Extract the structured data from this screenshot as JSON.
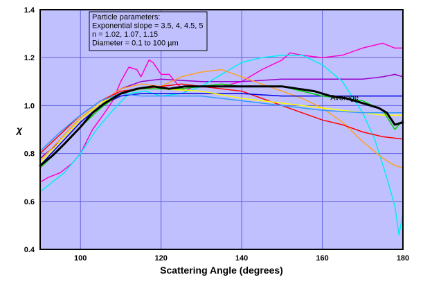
{
  "chart_data": {
    "type": "line",
    "xlabel": "Scattering Angle (degrees)",
    "ylabel": "χ",
    "xlim": [
      90,
      180
    ],
    "ylim": [
      0.4,
      1.4
    ],
    "x_ticks": [
      100,
      120,
      140,
      160,
      180
    ],
    "y_ticks": [
      0.4,
      0.6,
      0.8,
      1.0,
      1.2,
      1.4
    ],
    "grid": true,
    "colors": {
      "plot_background": "#c0c0ff",
      "grid": "#6060e0"
    },
    "annotation": {
      "lines": [
        "Particle parameters:",
        "Exponential slope = 3.5, 4, 4.5, 5",
        "n = 1.02, 1.07, 1.15",
        "Diameter = 0.1 to 100 µm"
      ],
      "placement": "top-left"
    },
    "series": [
      {
        "color": "#ff00cc",
        "x": [
          90,
          92,
          95,
          98,
          100,
          103,
          106,
          108,
          110,
          112,
          114,
          115,
          117,
          118,
          120,
          122,
          124,
          126,
          128,
          130,
          135,
          140,
          145,
          150,
          152,
          155,
          160,
          165,
          170,
          175,
          178,
          180
        ],
        "y": [
          0.68,
          0.7,
          0.72,
          0.76,
          0.8,
          0.9,
          0.97,
          1.02,
          1.1,
          1.16,
          1.15,
          1.12,
          1.19,
          1.18,
          1.13,
          1.13,
          1.09,
          1.06,
          1.08,
          1.08,
          1.08,
          1.1,
          1.15,
          1.19,
          1.22,
          1.21,
          1.2,
          1.21,
          1.24,
          1.26,
          1.24,
          1.24
        ]
      },
      {
        "color": "#9900cc",
        "x": [
          90,
          95,
          100,
          105,
          110,
          115,
          120,
          130,
          140,
          150,
          160,
          170,
          175,
          178,
          180
        ],
        "y": [
          0.78,
          0.85,
          0.94,
          1.01,
          1.07,
          1.1,
          1.11,
          1.1,
          1.1,
          1.11,
          1.11,
          1.11,
          1.12,
          1.13,
          1.12
        ]
      },
      {
        "color": "#00eeee",
        "x": [
          90,
          93,
          96,
          100,
          104,
          108,
          112,
          116,
          120,
          125,
          130,
          135,
          140,
          145,
          150,
          155,
          160,
          165,
          170,
          173,
          176,
          178,
          179,
          180
        ],
        "y": [
          0.64,
          0.68,
          0.72,
          0.8,
          0.9,
          0.98,
          1.05,
          1.06,
          1.04,
          1.05,
          1.08,
          1.13,
          1.18,
          1.2,
          1.21,
          1.21,
          1.17,
          1.1,
          0.97,
          0.86,
          0.7,
          0.58,
          0.46,
          0.55
        ]
      },
      {
        "color": "#ffa020",
        "x": [
          90,
          95,
          100,
          105,
          110,
          115,
          120,
          125,
          130,
          135,
          140,
          145,
          150,
          155,
          160,
          165,
          170,
          175,
          178,
          180
        ],
        "y": [
          0.77,
          0.86,
          0.95,
          1.01,
          1.07,
          1.09,
          1.08,
          1.12,
          1.14,
          1.15,
          1.12,
          1.09,
          1.06,
          1.03,
          0.99,
          0.93,
          0.85,
          0.78,
          0.75,
          0.74
        ]
      },
      {
        "color": "#ff0000",
        "x": [
          90,
          95,
          100,
          105,
          110,
          115,
          120,
          125,
          130,
          135,
          140,
          145,
          150,
          155,
          160,
          165,
          170,
          175,
          180
        ],
        "y": [
          0.8,
          0.88,
          0.96,
          1.02,
          1.06,
          1.07,
          1.08,
          1.09,
          1.08,
          1.07,
          1.06,
          1.03,
          1.0,
          0.97,
          0.94,
          0.92,
          0.89,
          0.87,
          0.86
        ]
      },
      {
        "color": "#0000e0",
        "x": [
          90,
          95,
          100,
          105,
          110,
          115,
          120,
          130,
          140,
          150,
          160,
          170,
          180
        ],
        "y": [
          0.75,
          0.84,
          0.93,
          1.0,
          1.04,
          1.05,
          1.05,
          1.05,
          1.05,
          1.04,
          1.04,
          1.04,
          1.04
        ]
      },
      {
        "color": "#ffff00",
        "x": [
          90,
          95,
          100,
          105,
          110,
          115,
          120,
          130,
          140,
          150,
          160,
          170,
          175,
          180
        ],
        "y": [
          0.76,
          0.85,
          0.94,
          1.01,
          1.05,
          1.07,
          1.07,
          1.06,
          1.03,
          1.01,
          0.99,
          0.97,
          0.96,
          0.96
        ]
      },
      {
        "color": "#3399ff",
        "x": [
          90,
          95,
          100,
          105,
          110,
          115,
          120,
          130,
          140,
          150,
          160,
          170,
          175,
          180
        ],
        "y": [
          0.81,
          0.89,
          0.96,
          1.02,
          1.05,
          1.04,
          1.04,
          1.04,
          1.02,
          1.0,
          0.98,
          0.97,
          0.97,
          0.97
        ]
      },
      {
        "color": "#00cc00",
        "x": [
          90,
          95,
          100,
          105,
          110,
          115,
          120,
          125,
          130,
          135,
          140,
          145,
          150,
          155,
          160,
          165,
          170,
          175,
          178,
          180
        ],
        "y": [
          0.74,
          0.82,
          0.91,
          0.99,
          1.05,
          1.07,
          1.07,
          1.07,
          1.08,
          1.09,
          1.08,
          1.08,
          1.08,
          1.06,
          1.04,
          1.03,
          1.02,
          0.98,
          0.9,
          0.94
        ]
      },
      {
        "name": "Average",
        "color": "#000000",
        "x": [
          90,
          93,
          96,
          100,
          103,
          106,
          110,
          114,
          118,
          122,
          126,
          130,
          134,
          138,
          142,
          146,
          150,
          154,
          158,
          162,
          166,
          170,
          174,
          176,
          178,
          180
        ],
        "y": [
          0.75,
          0.79,
          0.84,
          0.91,
          0.97,
          1.01,
          1.05,
          1.07,
          1.08,
          1.07,
          1.08,
          1.08,
          1.08,
          1.08,
          1.08,
          1.08,
          1.08,
          1.07,
          1.06,
          1.04,
          1.03,
          1.01,
          0.99,
          0.97,
          0.92,
          0.93
        ]
      }
    ],
    "series_label": {
      "text": "Average",
      "x": 162,
      "y": 1.035
    }
  }
}
